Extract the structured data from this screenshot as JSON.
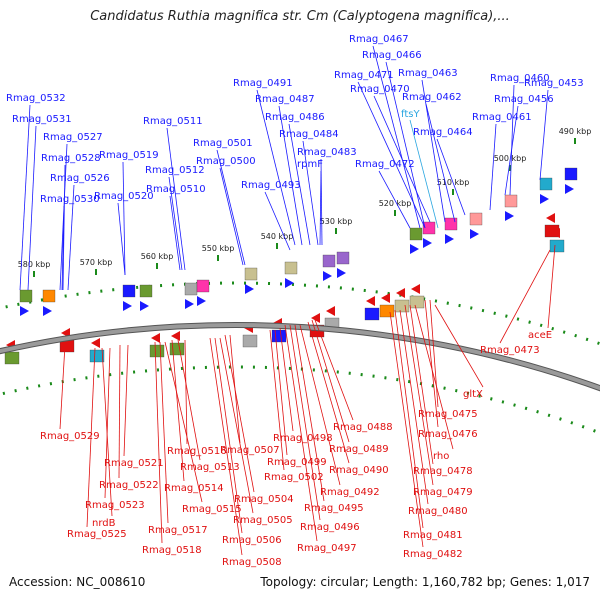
{
  "title": "Candidatus Ruthia magnifica str. Cm (Calyptogena magnifica),...",
  "footer": {
    "accession": "Accession: NC_008610",
    "summary": "Topology: circular; Length: 1,160,782 bp; Genes: 1,017"
  },
  "colors": {
    "forward_label": "#1a1aff",
    "reverse_label": "#e01010",
    "backbone": "#808080",
    "tick": "#1a8a1a",
    "special_label": "#2aa6e0"
  },
  "ticks": [
    "490 kbp",
    "500 kbp",
    "510 kbp",
    "520 kbp",
    "530 kbp",
    "540 kbp",
    "550 kbp",
    "560 kbp",
    "570 kbp",
    "580 kbp"
  ],
  "forward_genes": [
    "Rmag_0532",
    "Rmag_0531",
    "Rmag_0527",
    "Rmag_0528",
    "Rmag_0526",
    "Rmag_0530",
    "Rmag_0519",
    "Rmag_0520",
    "Rmag_0511",
    "Rmag_0512",
    "Rmag_0510",
    "Rmag_0501",
    "Rmag_0500",
    "Rmag_0491",
    "Rmag_0487",
    "Rmag_0486",
    "Rmag_0484",
    "Rmag_0493",
    "rpmF",
    "Rmag_0483",
    "Rmag_0467",
    "Rmag_0466",
    "Rmag_0471",
    "Rmag_0463",
    "Rmag_0470",
    "Rmag_0460",
    "Rmag_0453",
    "Rmag_0462",
    "Rmag_0456",
    "Rmag_0461",
    "Rmag_0464",
    "Rmag_0472"
  ],
  "special_genes": [
    "ftsY"
  ],
  "reverse_genes": [
    "aceE",
    "Rmag_0473",
    "gltX",
    "Rmag_0475",
    "Rmag_0476",
    "rho",
    "Rmag_0478",
    "Rmag_0479",
    "Rmag_0480",
    "Rmag_0481",
    "Rmag_0482",
    "Rmag_0488",
    "Rmag_0489",
    "Rmag_0490",
    "Rmag_0492",
    "Rmag_0495",
    "Rmag_0496",
    "Rmag_0497",
    "Rmag_0498",
    "Rmag_0499",
    "Rmag_0502",
    "Rmag_0507",
    "Rmag_0504",
    "Rmag_0505",
    "Rmag_0506",
    "Rmag_0508",
    "Rmag_0516",
    "Rmag_0513",
    "Rmag_0514",
    "Rmag_0515",
    "Rmag_0517",
    "Rmag_0518",
    "Rmag_0521",
    "Rmag_0522",
    "Rmag_0523",
    "nrdB",
    "Rmag_0525",
    "Rmag_0529"
  ]
}
